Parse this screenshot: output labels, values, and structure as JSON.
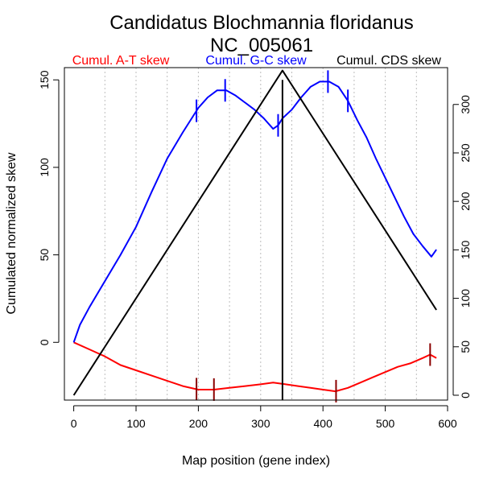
{
  "chart_data": {
    "type": "line",
    "title": "Candidatus Blochmannia floridanus",
    "subtitle": "NC_005061",
    "xlabel": "Map position (gene index)",
    "ylabel": "Cumulated normalized skew",
    "xlim": [
      -15,
      600
    ],
    "ylim": [
      -33,
      157
    ],
    "y2lim": [
      -5,
      338
    ],
    "x_ticks": [
      0,
      100,
      200,
      300,
      400,
      500,
      600
    ],
    "y_ticks": [
      0,
      50,
      100,
      150
    ],
    "y2_ticks": [
      0,
      50,
      100,
      150,
      200,
      250,
      300
    ],
    "grid_x": [
      50,
      100,
      150,
      200,
      250,
      300,
      350,
      400,
      450,
      500,
      550
    ],
    "vertical_line_x": 335,
    "series": [
      {
        "name": "Cumul. A-T skew",
        "color": "#ff0000",
        "axis": "left",
        "x": [
          0,
          25,
          50,
          75,
          100,
          125,
          150,
          175,
          200,
          225,
          250,
          275,
          300,
          320,
          340,
          360,
          380,
          400,
          420,
          440,
          460,
          480,
          500,
          520,
          540,
          560,
          572,
          582
        ],
        "y": [
          0,
          -4,
          -8,
          -13,
          -16,
          -19,
          -22,
          -25,
          -27,
          -27,
          -26,
          -25,
          -24,
          -23,
          -24,
          -25,
          -26,
          -27,
          -28,
          -26,
          -23,
          -20,
          -17,
          -14,
          -12,
          -9,
          -7,
          -9
        ],
        "markers": [
          197,
          225,
          421,
          572
        ]
      },
      {
        "name": "Cumul. G-C skew",
        "color": "#0000ff",
        "axis": "left",
        "x": [
          0,
          10,
          25,
          50,
          75,
          100,
          125,
          150,
          175,
          200,
          215,
          230,
          245,
          260,
          275,
          290,
          305,
          320,
          328,
          335,
          350,
          365,
          380,
          395,
          410,
          425,
          440,
          455,
          470,
          485,
          500,
          515,
          530,
          545,
          560,
          574,
          582
        ],
        "y": [
          0,
          10,
          20,
          35,
          50,
          66,
          86,
          105,
          120,
          134,
          140,
          144,
          144,
          141,
          137,
          133,
          128,
          122,
          124,
          128,
          133,
          140,
          146,
          149,
          149,
          146,
          138,
          127,
          117,
          105,
          94,
          83,
          72,
          62,
          55,
          49,
          53
        ],
        "markers": [
          197,
          243,
          328,
          408,
          440
        ]
      },
      {
        "name": "Cumul. CDS skew",
        "color": "#000000",
        "axis": "right",
        "x": [
          0,
          335,
          582
        ],
        "y": [
          0,
          335,
          88
        ]
      }
    ]
  }
}
